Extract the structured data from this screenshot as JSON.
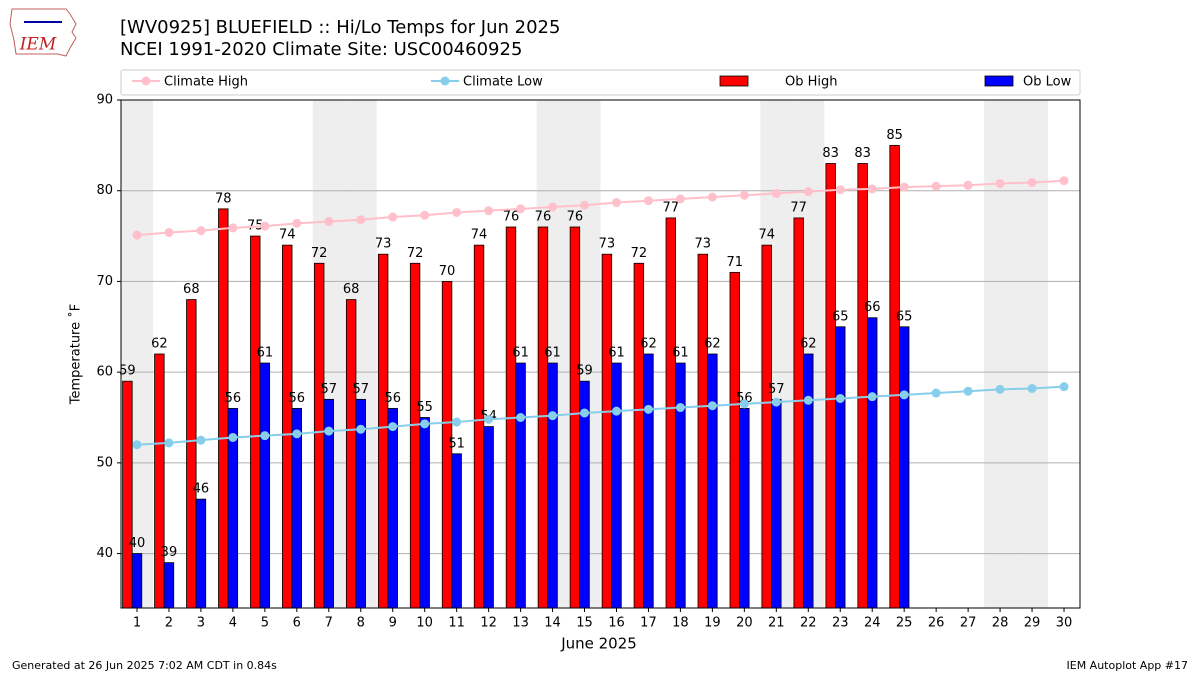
{
  "logo": "IEM",
  "footer": {
    "left": "Generated at 26 Jun 2025 7:02 AM CDT in 0.84s",
    "right": "IEM Autoplot App #17"
  },
  "chart_data": {
    "type": "bar",
    "title": "[WV0925] BLUEFIELD :: Hi/Lo Temps for Jun 2025",
    "subtitle": "NCEI 1991-2020 Climate Site: USC00460925",
    "x_label": "June 2025",
    "y_label": "Temperature ˚F",
    "x": [
      1,
      2,
      3,
      4,
      5,
      6,
      7,
      8,
      9,
      10,
      11,
      12,
      13,
      14,
      15,
      16,
      17,
      18,
      19,
      20,
      21,
      22,
      23,
      24,
      25,
      26,
      27,
      28,
      29,
      30
    ],
    "xlim": [
      0.5,
      30.5
    ],
    "xticks": [
      1,
      2,
      3,
      4,
      5,
      6,
      7,
      8,
      9,
      10,
      11,
      12,
      13,
      14,
      15,
      16,
      17,
      18,
      19,
      20,
      21,
      22,
      23,
      24,
      25,
      26,
      27,
      28,
      29,
      30
    ],
    "ylim": [
      34,
      90
    ],
    "yticks": [
      40,
      50,
      60,
      70,
      80,
      90
    ],
    "grid": true,
    "shaded_days": [
      1,
      7,
      8,
      14,
      15,
      21,
      22,
      28,
      29
    ],
    "legend": "top",
    "series": [
      {
        "name": "Climate High",
        "type": "line",
        "color": "#ffc0cb",
        "values": [
          75.1,
          75.4,
          75.6,
          75.9,
          76.1,
          76.4,
          76.6,
          76.8,
          77.1,
          77.3,
          77.6,
          77.8,
          78.0,
          78.2,
          78.4,
          78.7,
          78.9,
          79.1,
          79.3,
          79.5,
          79.7,
          79.9,
          80.1,
          80.2,
          80.4,
          80.5,
          80.6,
          80.8,
          80.9,
          81.1
        ]
      },
      {
        "name": "Climate Low",
        "type": "line",
        "color": "#87ceeb",
        "values": [
          52.0,
          52.2,
          52.5,
          52.8,
          53.0,
          53.2,
          53.5,
          53.7,
          54.0,
          54.3,
          54.5,
          54.8,
          55.0,
          55.2,
          55.5,
          55.7,
          55.9,
          56.1,
          56.3,
          56.5,
          56.7,
          56.9,
          57.1,
          57.3,
          57.5,
          57.7,
          57.9,
          58.1,
          58.2,
          58.4
        ]
      },
      {
        "name": "Ob High",
        "type": "bar",
        "color": "#ff0000",
        "values": [
          59,
          62,
          68,
          78,
          75,
          74,
          72,
          68,
          73,
          72,
          70,
          74,
          76,
          76,
          76,
          73,
          72,
          77,
          73,
          71,
          74,
          77,
          83,
          83,
          85,
          null,
          null,
          null,
          null,
          null
        ]
      },
      {
        "name": "Ob Low",
        "type": "bar",
        "color": "#0000ff",
        "values": [
          40,
          39,
          46,
          56,
          61,
          56,
          57,
          57,
          56,
          55,
          51,
          54,
          61,
          61,
          59,
          61,
          62,
          61,
          62,
          56,
          57,
          62,
          65,
          66,
          65,
          null,
          null,
          null,
          null,
          null
        ]
      }
    ]
  }
}
